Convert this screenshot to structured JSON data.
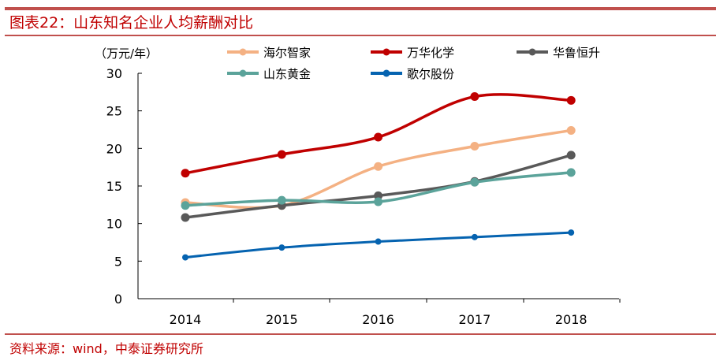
{
  "title": "图表22：山东知名企业人均薪酬对比",
  "source": "资料来源：wind，中泰证券研究所",
  "chart_data": {
    "type": "line",
    "title": "",
    "ylabel": "（万元/年）",
    "categories": [
      "2014",
      "2015",
      "2016",
      "2017",
      "2018"
    ],
    "ylim": [
      0,
      30
    ],
    "yticks": [
      0,
      5,
      10,
      15,
      20,
      25,
      30
    ],
    "grid": false,
    "legend": "top",
    "series": [
      {
        "name": "海尔智家",
        "color": "#f4b183",
        "values": [
          12.8,
          12.4,
          17.6,
          20.3,
          22.4
        ]
      },
      {
        "name": "万华化学",
        "color": "#c00000",
        "values": [
          16.7,
          19.2,
          21.5,
          26.9,
          26.4
        ]
      },
      {
        "name": "华鲁恒升",
        "color": "#595959",
        "values": [
          10.8,
          12.4,
          13.7,
          15.6,
          19.1
        ]
      },
      {
        "name": "山东黄金",
        "color": "#5ba39a",
        "values": [
          12.4,
          13.1,
          12.9,
          15.5,
          16.8
        ]
      },
      {
        "name": "歌尔股份",
        "color": "#0563b0",
        "values": [
          5.5,
          6.8,
          7.6,
          8.2,
          8.8
        ]
      }
    ]
  }
}
